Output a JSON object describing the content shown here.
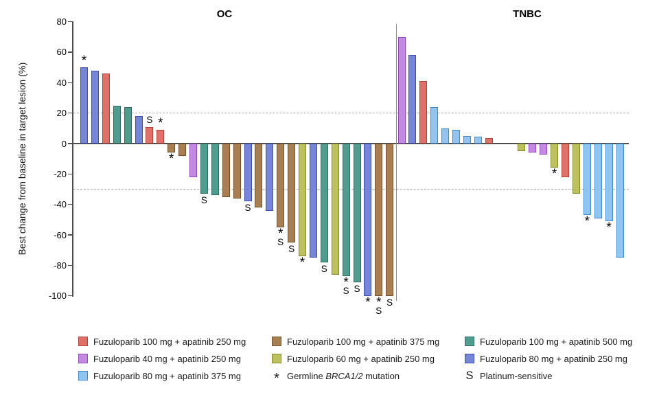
{
  "chart_data": {
    "type": "bar",
    "subtype": "waterfall",
    "title": "",
    "ylabel": "Best change from baseline in target lesion (%)",
    "ylim": [
      -100,
      80
    ],
    "yticks": [
      80,
      60,
      40,
      20,
      0,
      -20,
      -40,
      -60,
      -80,
      -100
    ],
    "reference_lines": [
      20,
      -30
    ],
    "grid": "dashed-reference-only",
    "legend_position": "bottom",
    "marker_meanings": {
      "*": "Germline BRCA1/2 mutation",
      "S": "Platinum-sensitive"
    },
    "groups": {
      "F100_A250": {
        "label": "Fuzuloparib 100 mg + apatinib 250 mg",
        "fill": "#E07168",
        "stroke": "#B04238"
      },
      "F40_A250": {
        "label": "Fuzuloparib 40 mg + apatinib 250 mg",
        "fill": "#C48ADF",
        "stroke": "#9349BE"
      },
      "F80_A375": {
        "label": "Fuzuloparib 80 mg + apatinib 375 mg",
        "fill": "#8FC5F0",
        "stroke": "#418AC9"
      },
      "F100_A375": {
        "label": "Fuzuloparib 100 mg + apatinib 375 mg",
        "fill": "#A97F52",
        "stroke": "#71512A"
      },
      "F60_A250": {
        "label": "Fuzuloparib 60 mg + apatinib 250 mg",
        "fill": "#BCC159",
        "stroke": "#84892D"
      },
      "F100_A500": {
        "label": "Fuzuloparib 100 mg + apatinib 500 mg",
        "fill": "#4F9D8E",
        "stroke": "#2E6C60"
      },
      "F80_A250": {
        "label": "Fuzuloparib 80 mg + apatinib 250 mg",
        "fill": "#7585D8",
        "stroke": "#3B4DB3"
      }
    },
    "panels": [
      {
        "title": "OC",
        "bars": [
          {
            "value": 50,
            "group": "F80_A250",
            "markers": [
              "*"
            ]
          },
          {
            "value": 48,
            "group": "F80_A250",
            "markers": []
          },
          {
            "value": 46,
            "group": "F100_A250",
            "markers": []
          },
          {
            "value": 25,
            "group": "F100_A500",
            "markers": []
          },
          {
            "value": 24,
            "group": "F100_A500",
            "markers": []
          },
          {
            "value": 18,
            "group": "F80_A250",
            "markers": []
          },
          {
            "value": 11,
            "group": "F100_A250",
            "markers": [
              "S"
            ]
          },
          {
            "value": 9,
            "group": "F100_A250",
            "markers": [
              "*"
            ]
          },
          {
            "value": -6,
            "group": "F100_A375",
            "markers": [
              "*"
            ]
          },
          {
            "value": -8,
            "group": "F100_A375",
            "markers": []
          },
          {
            "value": -22,
            "group": "F40_A250",
            "markers": []
          },
          {
            "value": -33,
            "group": "F100_A500",
            "markers": [
              "S"
            ]
          },
          {
            "value": -34,
            "group": "F100_A500",
            "markers": []
          },
          {
            "value": -35,
            "group": "F100_A375",
            "markers": []
          },
          {
            "value": -36,
            "group": "F100_A375",
            "markers": []
          },
          {
            "value": -38,
            "group": "F80_A250",
            "markers": [
              "S"
            ]
          },
          {
            "value": -42,
            "group": "F100_A375",
            "markers": []
          },
          {
            "value": -44,
            "group": "F80_A250",
            "markers": []
          },
          {
            "value": -55,
            "group": "F100_A375",
            "markers": [
              "*",
              "S"
            ]
          },
          {
            "value": -65,
            "group": "F100_A375",
            "markers": [
              "S"
            ]
          },
          {
            "value": -74,
            "group": "F60_A250",
            "markers": [
              "*"
            ]
          },
          {
            "value": -75,
            "group": "F80_A250",
            "markers": []
          },
          {
            "value": -78,
            "group": "F100_A500",
            "markers": [
              "S"
            ]
          },
          {
            "value": -86,
            "group": "F60_A250",
            "markers": []
          },
          {
            "value": -87,
            "group": "F100_A500",
            "markers": [
              "*",
              "S"
            ]
          },
          {
            "value": -91,
            "group": "F100_A500",
            "markers": [
              "S"
            ]
          },
          {
            "value": -100,
            "group": "F80_A250",
            "markers": [
              "*"
            ]
          },
          {
            "value": -100,
            "group": "F100_A375",
            "markers": [
              "*",
              "S"
            ]
          },
          {
            "value": -100,
            "group": "F100_A375",
            "markers": [
              "S"
            ]
          }
        ]
      },
      {
        "title": "TNBC",
        "bars": [
          {
            "value": 70,
            "group": "F40_A250",
            "markers": []
          },
          {
            "value": 58,
            "group": "F80_A250",
            "markers": []
          },
          {
            "value": 41,
            "group": "F100_A250",
            "markers": []
          },
          {
            "value": 24,
            "group": "F80_A375",
            "markers": []
          },
          {
            "value": 10,
            "group": "F80_A375",
            "markers": []
          },
          {
            "value": 9,
            "group": "F80_A375",
            "markers": []
          },
          {
            "value": 5,
            "group": "F80_A375",
            "markers": []
          },
          {
            "value": 4.5,
            "group": "F80_A375",
            "markers": []
          },
          {
            "value": 3.5,
            "group": "F100_A250",
            "markers": []
          },
          {
            "value": 0,
            "group": null,
            "markers": []
          },
          {
            "value": 0,
            "group": null,
            "markers": []
          },
          {
            "value": -5,
            "group": "F60_A250",
            "markers": []
          },
          {
            "value": -6,
            "group": "F40_A250",
            "markers": []
          },
          {
            "value": -7,
            "group": "F40_A250",
            "markers": []
          },
          {
            "value": -16,
            "group": "F60_A250",
            "markers": [
              "*"
            ]
          },
          {
            "value": -22,
            "group": "F100_A250",
            "markers": []
          },
          {
            "value": -33,
            "group": "F60_A250",
            "markers": []
          },
          {
            "value": -47,
            "group": "F80_A375",
            "markers": [
              "*"
            ]
          },
          {
            "value": -49,
            "group": "F80_A375",
            "markers": []
          },
          {
            "value": -51,
            "group": "F80_A375",
            "markers": [
              "*"
            ]
          },
          {
            "value": -75,
            "group": "F80_A375",
            "markers": []
          }
        ]
      }
    ],
    "legend_columns": [
      [
        {
          "swatch": "F100_A250"
        },
        {
          "swatch": "F40_A250"
        },
        {
          "swatch": "F80_A375"
        }
      ],
      [
        {
          "swatch": "F100_A375"
        },
        {
          "swatch": "F60_A250"
        },
        {
          "symbol": "*",
          "parts": [
            {
              "t": "Germline "
            },
            {
              "t": "BRCA1/2",
              "i": true
            },
            {
              "t": " mutation"
            }
          ]
        }
      ],
      [
        {
          "swatch": "F100_A500"
        },
        {
          "swatch": "F80_A250"
        },
        {
          "symbol": "S",
          "parts": [
            {
              "t": "Platinum-sensitive"
            }
          ]
        }
      ]
    ]
  }
}
